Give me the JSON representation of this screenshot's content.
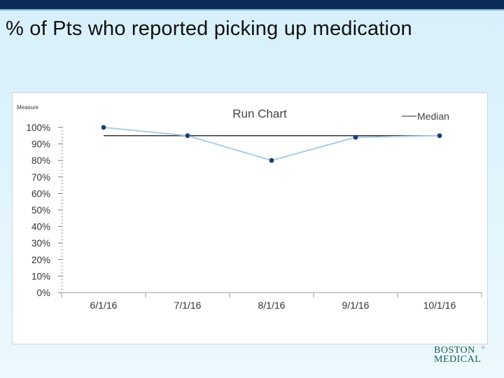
{
  "slide": {
    "title": "% of Pts who reported picking up medication"
  },
  "logo": {
    "line1": "BOSTON",
    "line2": "MEDICAL"
  },
  "chart_data": {
    "type": "line",
    "title": "Run Chart",
    "ylabel": "Measure",
    "xlabel": "",
    "categories": [
      "6/1/16",
      "7/1/16",
      "8/1/16",
      "9/1/16",
      "10/1/16"
    ],
    "series": [
      {
        "values": [
          100,
          95,
          80,
          94,
          95
        ],
        "color": "#a9cde8",
        "marker_color": "#1d3f73"
      },
      {
        "name": "Median",
        "values": [
          95,
          95,
          95,
          95,
          95
        ],
        "color": "#222222"
      }
    ],
    "y_ticks": [
      "0%",
      "10%",
      "20%",
      "30%",
      "40%",
      "50%",
      "60%",
      "70%",
      "80%",
      "90%",
      "100%"
    ],
    "ylim": [
      0,
      100
    ],
    "legend_position": "top-right",
    "grid": false
  }
}
